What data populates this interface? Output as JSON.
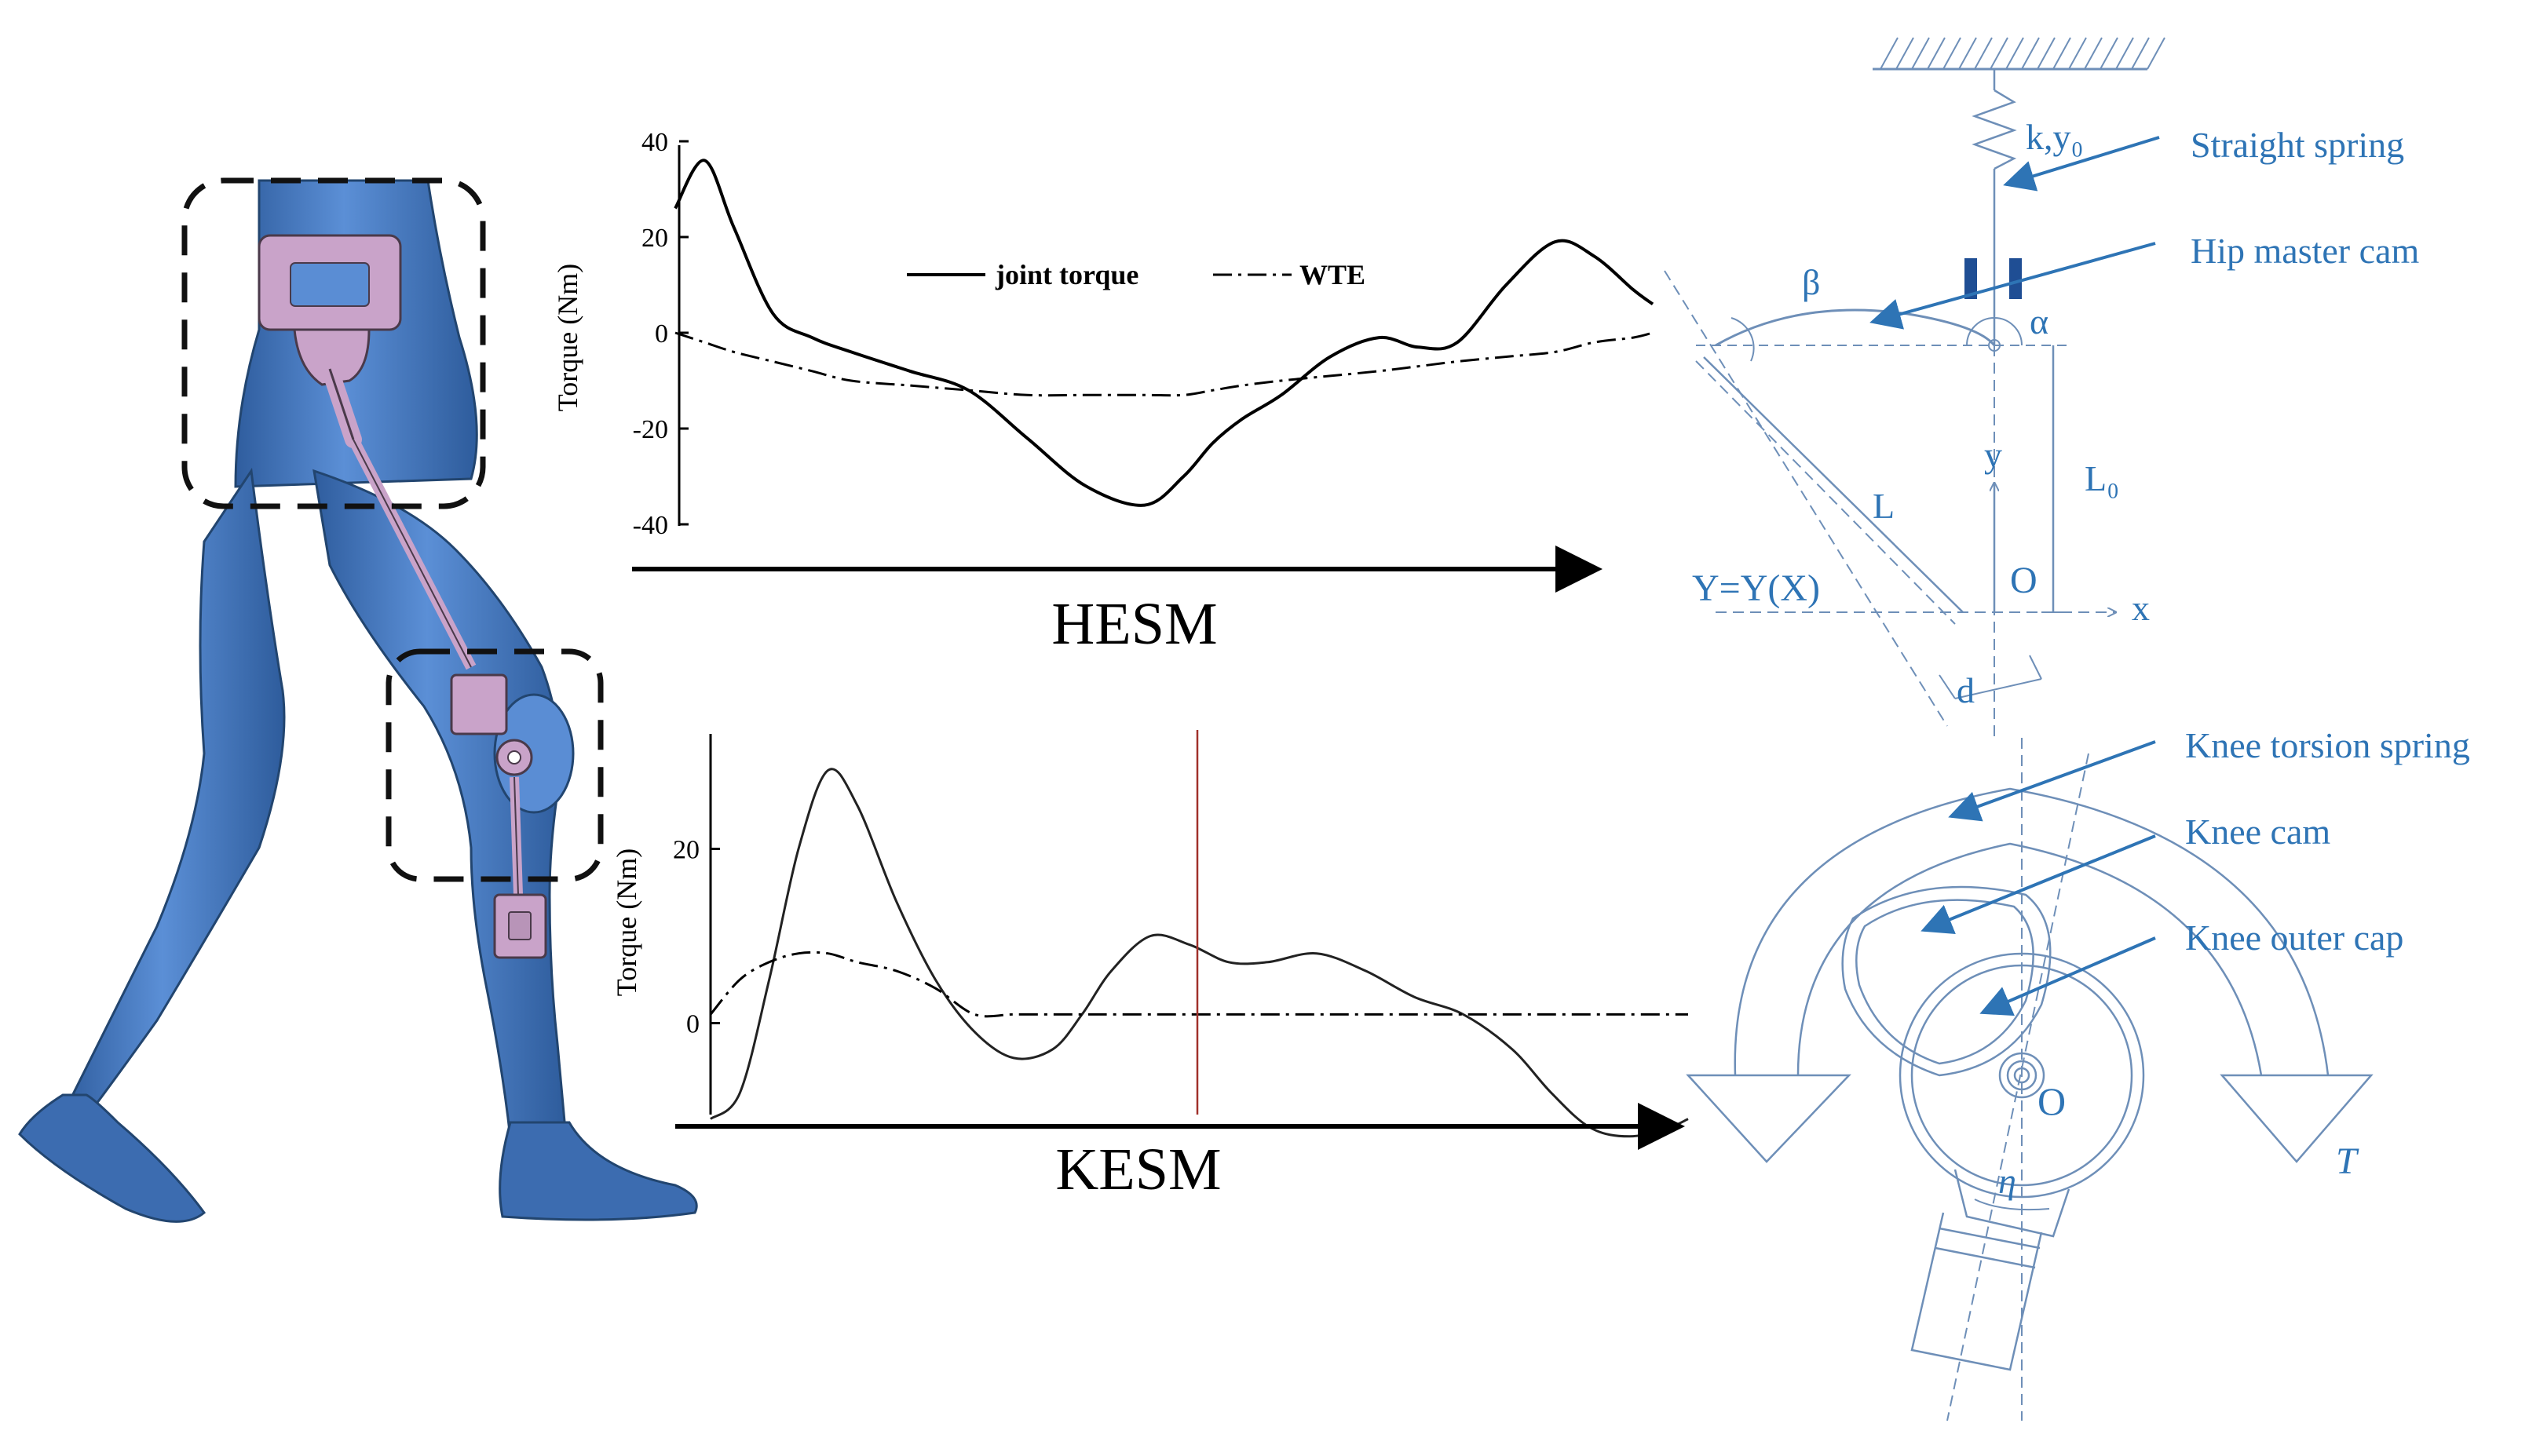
{
  "hesm": {
    "title": "HESM",
    "ylabel": "Torque (Nm)",
    "ticks": [
      "40",
      "20",
      "0",
      "-20",
      "-40"
    ],
    "legend": {
      "joint": "joint torque",
      "wte": "WTE"
    }
  },
  "kesm": {
    "title": "KESM",
    "ylabel": "Torque (Nm)",
    "ticks": [
      "20",
      "0"
    ]
  },
  "hip_schematic": {
    "spring_param": "k,y₀",
    "beta": "β",
    "alpha": "α",
    "y_axis": "y",
    "x_axis": "x",
    "origin": "O",
    "l0": "L₀",
    "l": "L",
    "curve": "Y=Y(X)",
    "d": "d"
  },
  "knee_schematic": {
    "origin": "O",
    "torque": "T",
    "eta": "η"
  },
  "callouts": {
    "straight_spring": "Straight spring",
    "hip_master_cam": "Hip master cam",
    "knee_torsion_spring": "Knee torsion spring",
    "knee_cam": "Knee cam",
    "knee_outer_cap": "Knee outer cap"
  },
  "colors": {
    "body": "#4a7cc7",
    "device": "#c9a3c9",
    "schematic": "#2e74b5",
    "reference_line": "#a0302a"
  },
  "chart_data": [
    {
      "type": "line",
      "title": "HESM",
      "xlabel": "",
      "ylabel": "Torque (Nm)",
      "ylim": [
        -40,
        40
      ],
      "x": [
        0,
        3,
        6,
        10,
        14,
        18,
        24,
        30,
        36,
        42,
        48,
        52,
        55,
        58,
        62,
        67,
        72,
        76,
        80,
        85,
        90,
        94,
        98,
        100
      ],
      "series": [
        {
          "name": "joint torque",
          "values": [
            26,
            36,
            22,
            4,
            -1,
            -4,
            -8,
            -12,
            -22,
            -32,
            -36,
            -30,
            -23,
            -18,
            -13,
            -5,
            -1,
            -3,
            -2,
            10,
            19,
            16,
            9,
            6
          ]
        },
        {
          "name": "WTE",
          "values": [
            0,
            -2,
            -4,
            -6,
            -8,
            -10,
            -11,
            -12,
            -13,
            -13,
            -13,
            -13,
            -12,
            -11,
            -10,
            -9,
            -8,
            -7,
            -6,
            -5,
            -4,
            -2,
            -1,
            0
          ]
        }
      ]
    },
    {
      "type": "line",
      "title": "KESM",
      "xlabel": "",
      "ylabel": "Torque (Nm)",
      "ylim": [
        -15,
        35
      ],
      "x": [
        0,
        3,
        6,
        9,
        12,
        15,
        19,
        23,
        27,
        31,
        35,
        38,
        41,
        45,
        49,
        53,
        57,
        62,
        67,
        72,
        77,
        82,
        86,
        90,
        94,
        98,
        100
      ],
      "series": [
        {
          "values": [
            -11,
            -8,
            5,
            20,
            29,
            25,
            14,
            5,
            -1,
            -4,
            -3,
            1,
            6,
            10,
            9,
            7,
            7,
            8,
            6,
            3,
            1,
            -3,
            -8,
            -12,
            -13,
            -12,
            -11
          ]
        },
        {
          "values": [
            1,
            5,
            7,
            8,
            8,
            7,
            6,
            4,
            1,
            1,
            1,
            1,
            1,
            1,
            1,
            1,
            1,
            1,
            1,
            1,
            1,
            1,
            1,
            1,
            1,
            1,
            1
          ]
        }
      ]
    }
  ]
}
